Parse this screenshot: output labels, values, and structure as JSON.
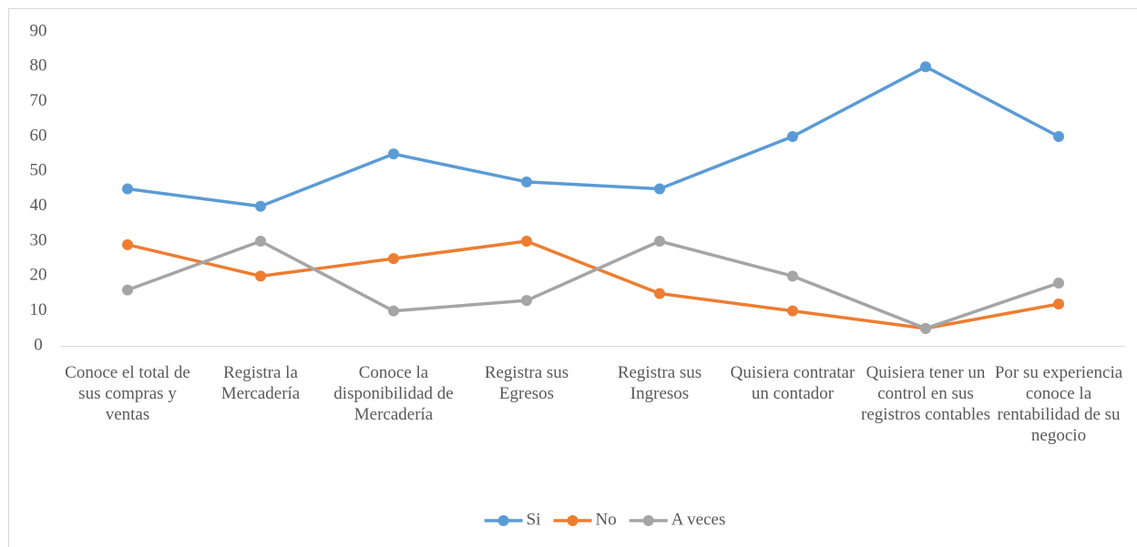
{
  "chart_data": {
    "type": "line",
    "categories": [
      "Conoce el total de sus compras y ventas",
      "Registra la Mercadería",
      "Conoce la disponibilidad de Mercadería",
      "Registra sus Egresos",
      "Registra sus Ingresos",
      "Quisiera contratar un contador",
      "Quisiera tener un control en sus registros contables",
      "Por su experiencia conoce la rentabilidad de su negocio"
    ],
    "series": [
      {
        "name": "Si",
        "color": "#5b9bd5",
        "values": [
          45,
          40,
          55,
          47,
          45,
          60,
          80,
          60
        ]
      },
      {
        "name": "No",
        "color": "#ed7d31",
        "values": [
          29,
          20,
          25,
          30,
          15,
          10,
          5,
          12
        ]
      },
      {
        "name": "A veces",
        "color": "#a5a5a5",
        "values": [
          16,
          30,
          10,
          13,
          30,
          20,
          5,
          18
        ]
      }
    ],
    "ylim": [
      0,
      90
    ],
    "yticks": [
      0,
      10,
      20,
      30,
      40,
      50,
      60,
      70,
      80,
      90
    ],
    "grid": false,
    "legend": "bottom"
  }
}
